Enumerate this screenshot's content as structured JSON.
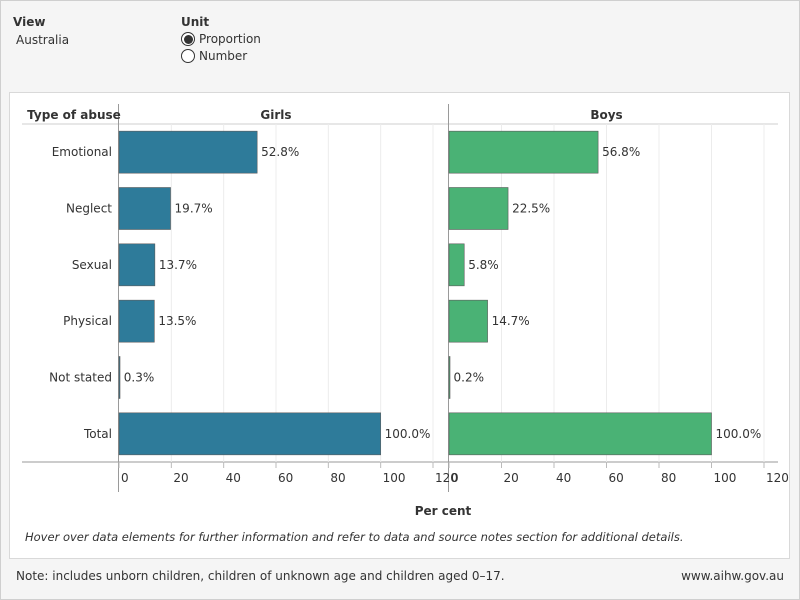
{
  "controls": {
    "view": {
      "label": "View",
      "value": "Australia"
    },
    "unit": {
      "label": "Unit",
      "options": [
        "Proportion",
        "Number"
      ],
      "selected": "Proportion"
    }
  },
  "chart_data": {
    "type": "bar",
    "orientation": "horizontal",
    "category_header": "Type of abuse",
    "categories": [
      "Emotional",
      "Neglect",
      "Sexual",
      "Physical",
      "Not stated",
      "Total"
    ],
    "series": [
      {
        "name": "Girls",
        "color": "#2e7b9a",
        "values": [
          52.8,
          19.7,
          13.7,
          13.5,
          0.3,
          100.0
        ],
        "labels": [
          "52.8%",
          "19.7%",
          "13.7%",
          "13.5%",
          "0.3%",
          "100.0%"
        ]
      },
      {
        "name": "Boys",
        "color": "#4ab275",
        "values": [
          56.8,
          22.5,
          5.8,
          14.7,
          0.2,
          100.0
        ],
        "labels": [
          "56.8%",
          "22.5%",
          "5.8%",
          "14.7%",
          "0.2%",
          "100.0%"
        ]
      }
    ],
    "xlim": [
      0,
      120
    ],
    "xticks": [
      0,
      20,
      40,
      60,
      80,
      100,
      120
    ],
    "xlabel": "Per cent",
    "grid": true
  },
  "hover_note": "Hover over data elements for further information and refer to data and source notes section for additional details.",
  "footer": {
    "note": "Note: includes unborn children, children of unknown age and children aged 0–17.",
    "site": "www.aihw.gov.au"
  }
}
